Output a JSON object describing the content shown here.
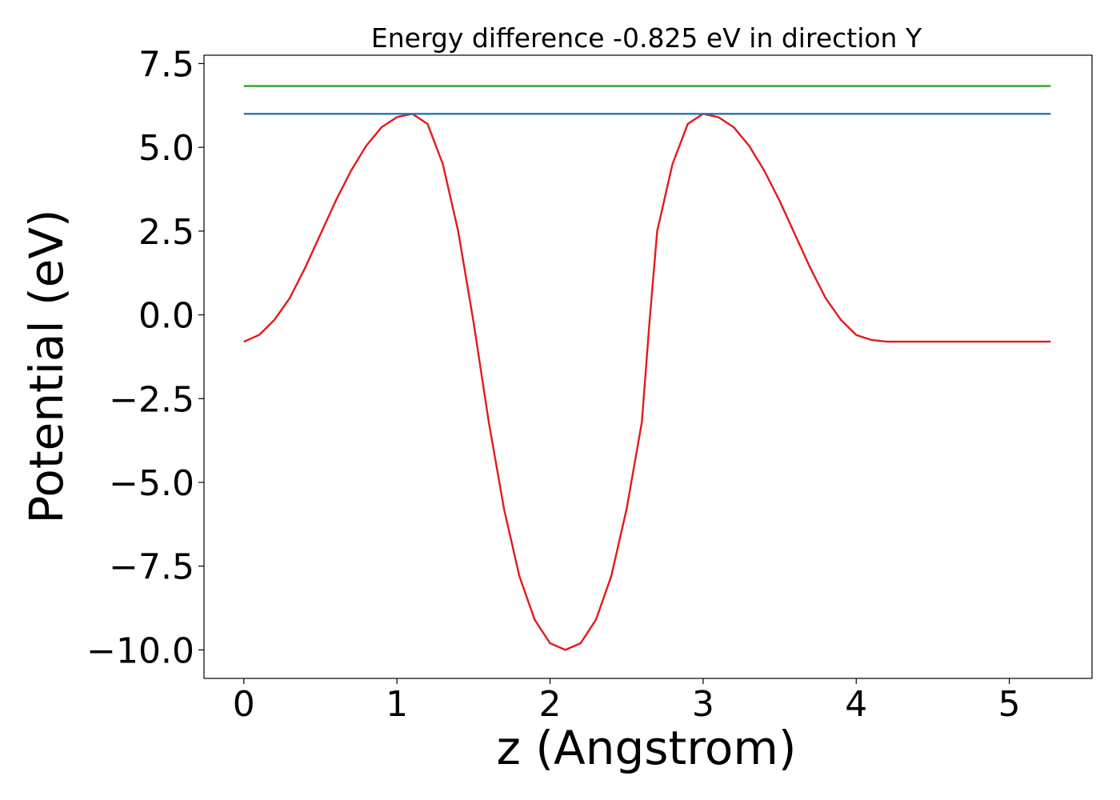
{
  "chart_data": {
    "type": "line",
    "title": "Energy difference -0.825 eV in direction Y",
    "xlabel": "z (Angstrom)",
    "ylabel": "Potential (eV)",
    "xlim": [
      -0.26,
      5.54
    ],
    "ylim": [
      -10.85,
      7.75
    ],
    "xticks": [
      0,
      1,
      2,
      3,
      4,
      5
    ],
    "xtick_labels": [
      "0",
      "1",
      "2",
      "3",
      "4",
      "5"
    ],
    "yticks": [
      7.5,
      5.0,
      2.5,
      0.0,
      -2.5,
      -5.0,
      -7.5,
      -10.0
    ],
    "ytick_labels": [
      "7.5",
      "5.0",
      "2.5",
      "0.0",
      "−2.5",
      "−5.0",
      "−7.5",
      "−10.0"
    ],
    "grid": false,
    "series": [
      {
        "color": "#e41a1c",
        "x": [
          0.0,
          0.1,
          0.2,
          0.3,
          0.4,
          0.5,
          0.6,
          0.7,
          0.8,
          0.9,
          1.0,
          1.1,
          1.2,
          1.3,
          1.4,
          1.5,
          1.6,
          1.7,
          1.8,
          1.9,
          2.0,
          2.1,
          2.2,
          2.3,
          2.4,
          2.5,
          2.6,
          2.65,
          2.7,
          2.8,
          2.9,
          3.0,
          3.1,
          3.2,
          3.3,
          3.4,
          3.5,
          3.6,
          3.7,
          3.8,
          3.9,
          4.0,
          4.1,
          4.2,
          4.3,
          4.4,
          4.5,
          4.6,
          4.7,
          4.8,
          4.9,
          5.0,
          5.1,
          5.2,
          5.27
        ],
        "y": [
          -0.8,
          -0.6,
          -0.15,
          0.5,
          1.4,
          2.4,
          3.4,
          4.3,
          5.05,
          5.6,
          5.9,
          6.0,
          5.7,
          4.5,
          2.5,
          -0.2,
          -3.2,
          -5.8,
          -7.8,
          -9.1,
          -9.8,
          -10.0,
          -9.8,
          -9.1,
          -7.8,
          -5.8,
          -3.2,
          -0.2,
          2.5,
          4.5,
          5.7,
          6.0,
          5.9,
          5.6,
          5.05,
          4.3,
          3.4,
          2.4,
          1.4,
          0.5,
          -0.15,
          -0.6,
          -0.75,
          -0.8,
          -0.8,
          -0.8,
          -0.8,
          -0.8,
          -0.8,
          -0.8,
          -0.8,
          -0.8,
          -0.8,
          -0.8,
          -0.8
        ]
      },
      {
        "color": "#1f77b4",
        "x": [
          0.0,
          5.27
        ],
        "y": [
          6.0,
          6.0
        ]
      },
      {
        "color": "#2ca02c",
        "x": [
          0.0,
          5.27
        ],
        "y": [
          6.83,
          6.83
        ]
      }
    ]
  }
}
